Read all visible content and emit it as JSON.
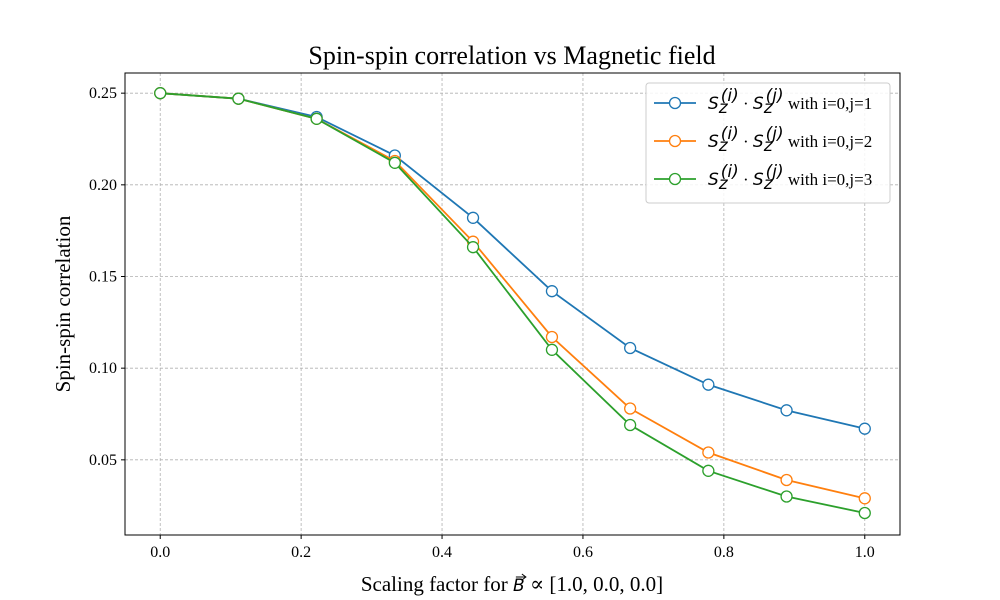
{
  "chart_data": {
    "type": "line",
    "title": "Spin-spin correlation vs Magnetic field",
    "xlabel_prefix": "Scaling factor for ",
    "xlabel_symbol": "B",
    "xlabel_suffix": " ∝ [1.0, 0.0, 0.0]",
    "ylabel": "Spin-spin correlation",
    "xlim": [
      -0.05,
      1.05
    ],
    "ylim": [
      0.009,
      0.261
    ],
    "xticks": [
      0.0,
      0.2,
      0.4,
      0.6,
      0.8,
      1.0
    ],
    "xtick_labels": [
      "0.0",
      "0.2",
      "0.4",
      "0.6",
      "0.8",
      "1.0"
    ],
    "yticks": [
      0.05,
      0.1,
      0.15,
      0.2,
      0.25
    ],
    "ytick_labels": [
      "0.05",
      "0.10",
      "0.15",
      "0.20",
      "0.25"
    ],
    "grid": true,
    "legend_position": "top-right",
    "x": [
      0.0,
      0.111,
      0.222,
      0.333,
      0.444,
      0.556,
      0.667,
      0.778,
      0.889,
      1.0
    ],
    "series": [
      {
        "name_math": "S",
        "name_text": " with i=0,j=1",
        "color": "#1f77b4",
        "values": [
          0.25,
          0.247,
          0.237,
          0.216,
          0.182,
          0.142,
          0.111,
          0.091,
          0.077,
          0.067
        ]
      },
      {
        "name_math": "S",
        "name_text": " with i=0,j=2",
        "color": "#ff7f0e",
        "values": [
          0.25,
          0.247,
          0.236,
          0.213,
          0.169,
          0.117,
          0.078,
          0.054,
          0.039,
          0.029
        ]
      },
      {
        "name_math": "S",
        "name_text": " with i=0,j=3",
        "color": "#2ca02c",
        "values": [
          0.25,
          0.247,
          0.236,
          0.212,
          0.166,
          0.11,
          0.069,
          0.044,
          0.03,
          0.021
        ]
      }
    ]
  }
}
